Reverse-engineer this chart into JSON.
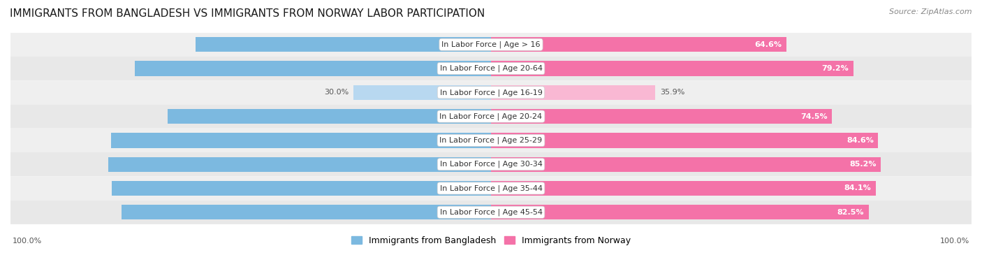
{
  "title": "IMMIGRANTS FROM BANGLADESH VS IMMIGRANTS FROM NORWAY LABOR PARTICIPATION",
  "source": "Source: ZipAtlas.com",
  "categories": [
    "In Labor Force | Age > 16",
    "In Labor Force | Age 20-64",
    "In Labor Force | Age 16-19",
    "In Labor Force | Age 20-24",
    "In Labor Force | Age 25-29",
    "In Labor Force | Age 30-34",
    "In Labor Force | Age 35-44",
    "In Labor Force | Age 45-54"
  ],
  "bangladesh_values": [
    64.5,
    77.9,
    30.0,
    70.6,
    83.0,
    83.6,
    82.9,
    80.7
  ],
  "norway_values": [
    64.6,
    79.2,
    35.9,
    74.5,
    84.6,
    85.2,
    84.1,
    82.5
  ],
  "bangladesh_color": "#7cb9e0",
  "bangladesh_color_light": "#b8d8f0",
  "norway_color": "#f472a8",
  "norway_color_light": "#f9b8d3",
  "row_bg_colors": [
    "#efefef",
    "#e8e8e8"
  ],
  "max_value": 100.0,
  "legend_bangladesh": "Immigrants from Bangladesh",
  "legend_norway": "Immigrants from Norway",
  "title_fontsize": 11,
  "label_fontsize": 8,
  "value_fontsize": 8,
  "background_color": "#ffffff",
  "bottom_label": "100.0%"
}
